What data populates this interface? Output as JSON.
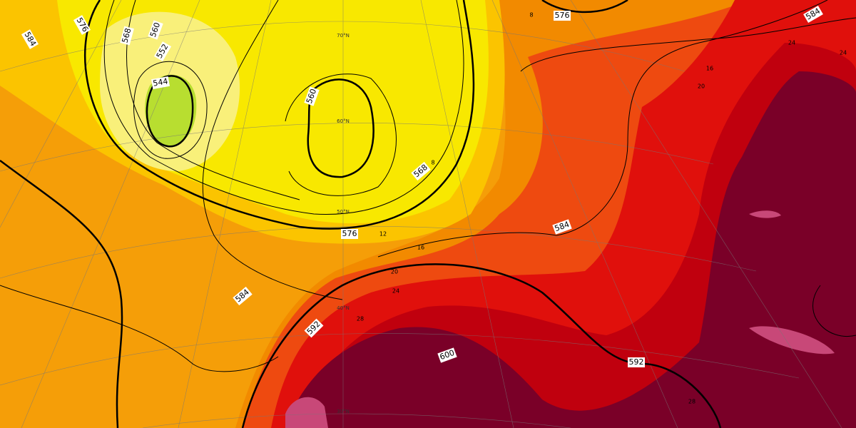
{
  "contour_labels": [
    "584",
    "576",
    "568",
    "560",
    "552",
    "544",
    "560",
    "568",
    "576",
    "576",
    "584",
    "584",
    "584",
    "592",
    "600",
    "592"
  ],
  "temperature_labels": [
    "8",
    "16",
    "20",
    "24",
    "12",
    "16",
    "20",
    "24",
    "28",
    "8",
    "24",
    "28"
  ],
  "latitude_labels": [
    "70°N",
    "60°N",
    "50°N",
    "40°N",
    "30°N"
  ]
}
